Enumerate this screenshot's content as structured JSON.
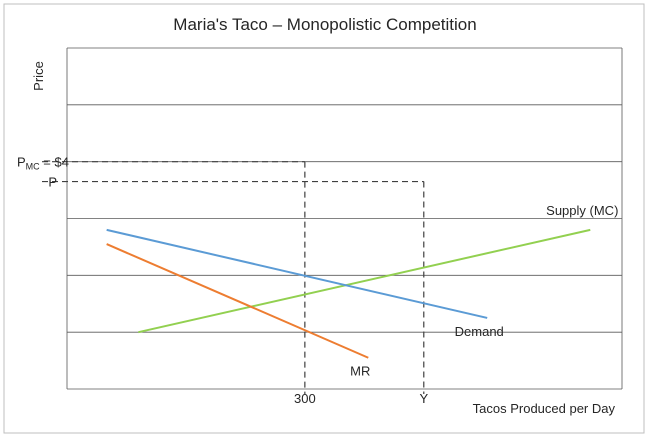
{
  "chart_data": {
    "type": "line",
    "title": "Maria's Taco – Monopolistic Competition",
    "xlabel": "Tacos Produced per Day",
    "ylabel": "Price",
    "grid": true,
    "x_ticks": [
      {
        "label": "300",
        "x": 300
      },
      {
        "label": "Y",
        "x": 450
      }
    ],
    "y_ticks": [
      {
        "label_main": "P",
        "label_sub": "MC",
        "label_rest": " = $4",
        "y": 4.0
      },
      {
        "label_main": "P",
        "label_sub": "",
        "label_rest": "",
        "y": 3.65
      }
    ],
    "series": [
      {
        "name": "Supply (MC)",
        "color": "#92d050",
        "points": [
          [
            90,
            1.0
          ],
          [
            660,
            2.8
          ]
        ]
      },
      {
        "name": "Demand",
        "color": "#5b9bd5",
        "points": [
          [
            50,
            2.8
          ],
          [
            530,
            1.25
          ]
        ]
      },
      {
        "name": "MR",
        "color": "#ed7d31",
        "points": [
          [
            50,
            2.55
          ],
          [
            380,
            0.55
          ]
        ]
      }
    ],
    "series_label_positions": {
      "Supply (MC)": "above-right",
      "Demand": "below-right",
      "MR": "below-right"
    }
  }
}
